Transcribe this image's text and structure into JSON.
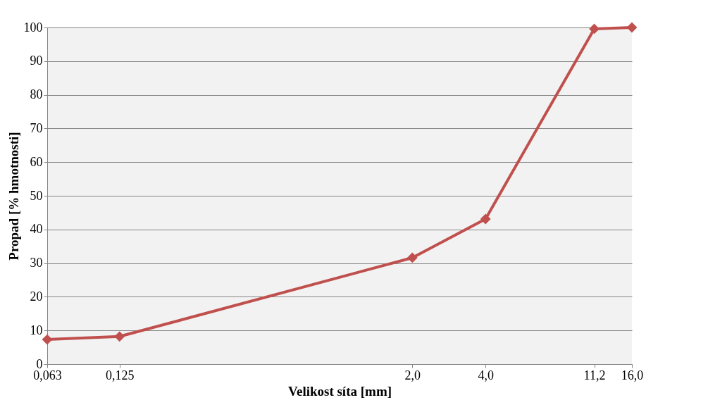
{
  "chart_data": {
    "type": "line",
    "xlabel": "Velikost síta [mm]",
    "ylabel": "Propad [% hmotnosti]",
    "x": [
      0.063,
      0.125,
      2.0,
      4.0,
      11.2,
      16.0
    ],
    "series": [
      {
        "color": "#c0504d",
        "values": [
          7.3,
          8.2,
          31.6,
          43.1,
          99.6,
          100
        ]
      }
    ],
    "xlim": [
      0.063,
      16.0
    ],
    "xticks": [
      {
        "value": 0.063,
        "label": "0,063"
      },
      {
        "value": 0.125,
        "label": "0,125"
      },
      {
        "value": 2.0,
        "label": "2,0"
      },
      {
        "value": 4.0,
        "label": "4,0"
      },
      {
        "value": 11.2,
        "label": "11,2"
      },
      {
        "value": 16.0,
        "label": "16,0"
      }
    ],
    "ylim": [
      0,
      100
    ],
    "yticks": [
      0,
      10,
      20,
      30,
      40,
      50,
      60,
      70,
      80,
      90,
      100
    ],
    "log": "x",
    "grid": "y",
    "marker": "diamond",
    "line_style": "solid"
  }
}
